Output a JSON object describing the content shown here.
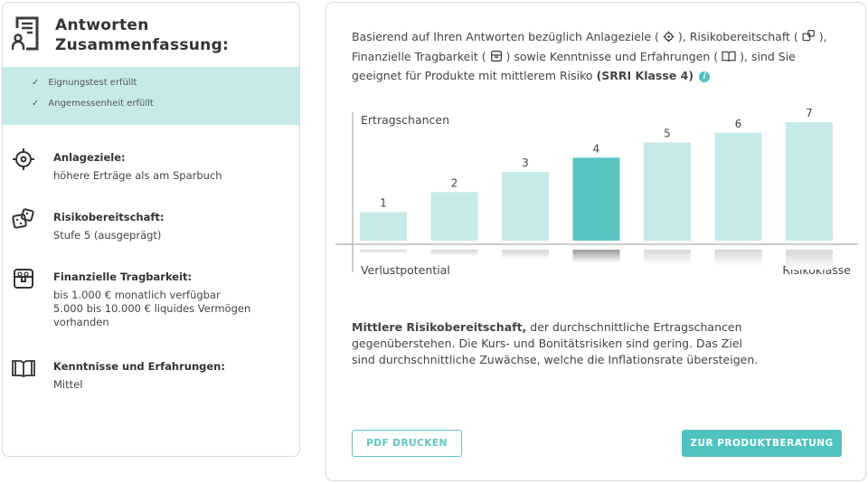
{
  "summary": {
    "title_line1": "Antworten",
    "title_line2": "Zusammenfassung:",
    "checks": [
      "Eignungstest erfüllt",
      "Angemessenheit erfüllt"
    ],
    "sections": [
      {
        "icon": "target-icon",
        "title": "Anlageziele:",
        "text": "höhere Erträge als am Sparbuch"
      },
      {
        "icon": "dice-icon",
        "title": "Risikobereitschaft:",
        "text": "Stufe 5 (ausgeprägt)"
      },
      {
        "icon": "treasure-chest-icon",
        "title": "Finanzielle Tragbarkeit:",
        "text": "bis 1.000 € monatlich verfügbar\n5.000 bis 10.000 € liquides Vermögen vorhanden"
      },
      {
        "icon": "book-icon",
        "title": "Kenntnisse und Erfahrungen:",
        "text": "Mittel"
      }
    ]
  },
  "intro": {
    "p1": "Basierend auf Ihren Antworten bezüglich Anlageziele (",
    "p2": "), Risikobereitschaft (",
    "p3": "), Finanzielle Tragbarkeit (",
    "p4": ") sowie Kenntnisse und Erfahrungen (",
    "p5": "), sind Sie geeignet für Produkte mit mittlerem Risiko",
    "bold": "(SRRI Klasse 4)",
    "info_icon": "info-icon"
  },
  "chart_data": {
    "type": "bar",
    "categories": [
      "1",
      "2",
      "3",
      "4",
      "5",
      "6",
      "7"
    ],
    "series": [
      {
        "name": "Ertragschancen",
        "values": [
          0.24,
          0.41,
          0.58,
          0.7,
          0.83,
          0.91,
          1.0
        ]
      },
      {
        "name": "Verlustpotential",
        "values": [
          0.2,
          0.35,
          0.5,
          0.65,
          0.75,
          0.85,
          1.0
        ]
      }
    ],
    "highlighted": "4",
    "xlabel": "Risikoklasse",
    "colors": {
      "bar": "#c6eaea",
      "highlight": "#58c5c1",
      "loss": "#d6d6d6",
      "loss_highlight": "#999999"
    }
  },
  "description": {
    "bold": "Mittlere Risikobereitschaft,",
    "text": " der durchschnittliche Ertragschancen gegenüberstehen. Die Kurs- und Bonitätsrisiken sind gering. Das Ziel sind durchschnittliche Zuwächse, welche die Inflationsrate übersteigen."
  },
  "buttons": {
    "pdf": "PDF DRUCKEN",
    "beratung": "ZUR PRODUKTBERATUNG"
  }
}
